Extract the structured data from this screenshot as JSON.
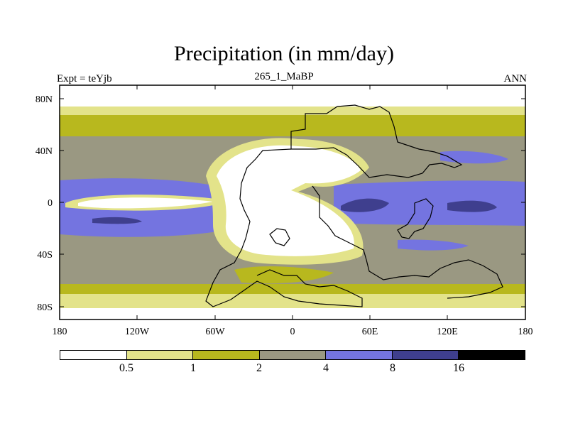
{
  "title": "Precipitation (in mm/day)",
  "subtitle_left": "Expt = teYjb",
  "subtitle_center": "265_1_MaBP",
  "subtitle_right": "ANN",
  "axes": {
    "lat_ticks": [
      "80N",
      "40N",
      "0",
      "40S",
      "80S"
    ],
    "lon_ticks": [
      "180",
      "120W",
      "60W",
      "0",
      "60E",
      "120E",
      "180"
    ]
  },
  "colors": {
    "c0": "#ffffff",
    "c1": "#e3e38a",
    "c2": "#b8b81e",
    "c3": "#9a9882",
    "c4": "#7474e0",
    "c5": "#3f3f8e",
    "c6": "#000000"
  },
  "colorbar": {
    "levels": [
      "0.5",
      "1",
      "2",
      "4",
      "8",
      "16"
    ],
    "swatches": [
      "#ffffff",
      "#e3e38a",
      "#b8b81e",
      "#9a9882",
      "#7474e0",
      "#3f3f8e",
      "#000000"
    ]
  }
}
